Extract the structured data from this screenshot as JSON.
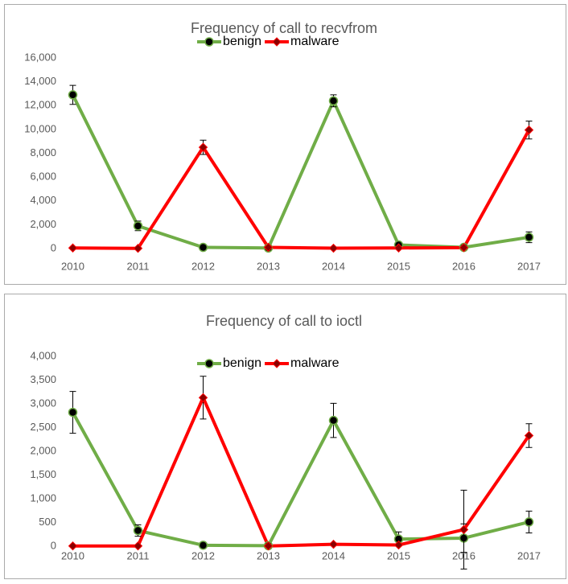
{
  "chart_data": [
    {
      "type": "line",
      "title": "Frequency of call to recvfrom",
      "categories": [
        "2010",
        "2011",
        "2012",
        "2013",
        "2014",
        "2015",
        "2016",
        "2017"
      ],
      "ylim": [
        0,
        16000
      ],
      "yticks": [
        0,
        {
          "value": 2000,
          "label": "2,000"
        },
        {
          "value": 4000,
          "label": "4,000"
        },
        {
          "value": 6000,
          "label": "6,000"
        },
        {
          "value": 8000,
          "label": "8,000"
        },
        {
          "value": 10000,
          "label": "10,000"
        },
        {
          "value": 12000,
          "label": "12,000"
        },
        {
          "value": 14000,
          "label": "14,000"
        },
        {
          "value": 16000,
          "label": "16,000"
        }
      ],
      "series": [
        {
          "name": "benign",
          "color": "#70ad47",
          "values": [
            12900,
            1900,
            100,
            50,
            12400,
            300,
            100,
            950
          ],
          "errors": [
            800,
            400,
            20,
            10,
            500,
            60,
            20,
            450
          ]
        },
        {
          "name": "malware",
          "color": "#ff0000",
          "values": [
            50,
            20,
            8500,
            100,
            30,
            50,
            80,
            9950
          ],
          "errors": [
            10,
            5,
            600,
            20,
            5,
            10,
            15,
            750
          ]
        }
      ]
    },
    {
      "type": "line",
      "title": "Frequency of call to ioctl",
      "categories": [
        "2010",
        "2011",
        "2012",
        "2013",
        "2014",
        "2015",
        "2016",
        "2017"
      ],
      "ylim": [
        0,
        4000
      ],
      "yticks": [
        0,
        500,
        {
          "value": 1000,
          "label": "1,000"
        },
        {
          "value": 1500,
          "label": "1,500"
        },
        {
          "value": 2000,
          "label": "2,000"
        },
        {
          "value": 2500,
          "label": "2,500"
        },
        {
          "value": 3000,
          "label": "3,000"
        },
        {
          "value": 3500,
          "label": "3,500"
        },
        {
          "value": 4000,
          "label": "4,000"
        }
      ],
      "series": [
        {
          "name": "benign",
          "color": "#70ad47",
          "values": [
            2820,
            330,
            20,
            10,
            2650,
            150,
            170,
            510
          ],
          "errors": [
            440,
            120,
            5,
            3,
            360,
            150,
            300,
            230
          ]
        },
        {
          "name": "malware",
          "color": "#ff0000",
          "values": [
            5,
            5,
            3130,
            5,
            40,
            25,
            350,
            2330
          ],
          "errors": [
            2,
            2,
            450,
            2,
            10,
            5,
            830,
            250
          ]
        }
      ]
    }
  ]
}
